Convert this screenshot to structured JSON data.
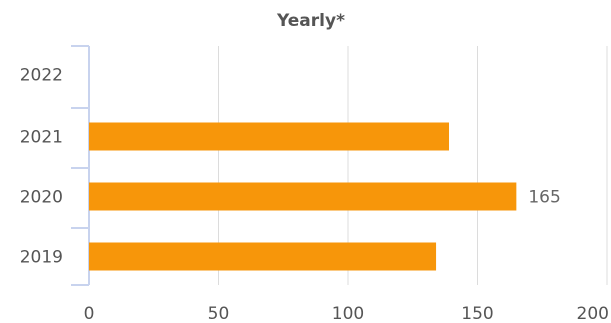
{
  "chart_data": {
    "type": "bar",
    "orientation": "horizontal",
    "title": "Yearly*",
    "categories": [
      "2022",
      "2021",
      "2020",
      "2019"
    ],
    "series": [
      {
        "values": [
          0,
          139,
          165,
          134
        ],
        "color": "#f7960a"
      }
    ],
    "data_labels": [
      null,
      null,
      "165",
      null
    ],
    "xlim": [
      0,
      200
    ],
    "xticks": [
      "0",
      "50",
      "100",
      "150",
      "200"
    ],
    "xtick_values": [
      0,
      50,
      100,
      150,
      200
    ],
    "grid": true,
    "legend": false,
    "colors": {
      "grid": "#dcdcdc",
      "axis": "#c8d3ee",
      "text": "#555555"
    }
  }
}
